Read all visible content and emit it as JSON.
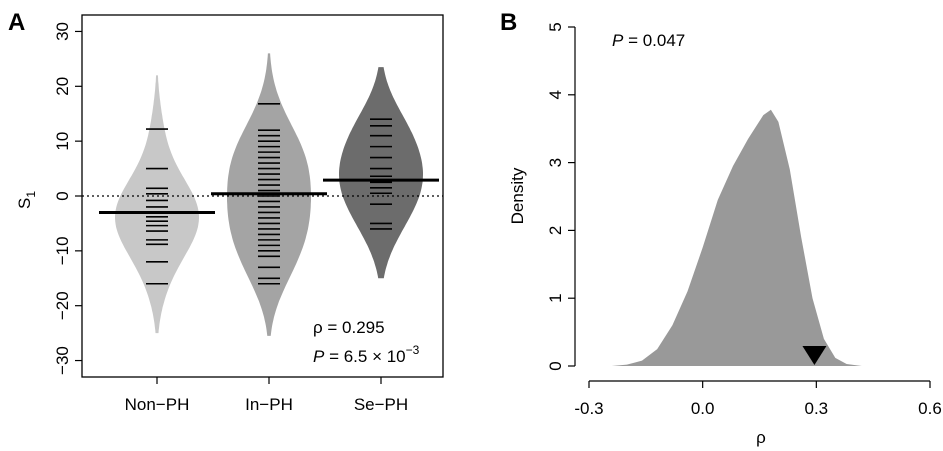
{
  "chart_data": [
    {
      "panel": "A",
      "type": "beanplot",
      "ylabel": "S",
      "ylabel_subscript": "1",
      "ylim": [
        -33,
        33
      ],
      "yticks": [
        -30,
        -20,
        -10,
        0,
        10,
        20,
        30
      ],
      "ytick_labels": [
        "−30",
        "−20",
        "−10",
        "0",
        "10",
        "20",
        "30"
      ],
      "categories": [
        "Non−PH",
        "In−PH",
        "Se−PH"
      ],
      "reference_line": 0,
      "groups": [
        {
          "name": "Non−PH",
          "color": "#c8c8c8",
          "mean": -3.0,
          "range": [
            -25,
            22
          ],
          "observations": [
            12.2,
            5,
            1.4,
            0.4,
            -0.8,
            -2,
            -3,
            -3.8,
            -4.6,
            -5.4,
            -6.4,
            -8,
            -8.8,
            -12,
            -16
          ]
        },
        {
          "name": "In−PH",
          "color": "#a4a4a4",
          "mean": 0.4,
          "range": [
            -25.5,
            26
          ],
          "observations": [
            16.8,
            12,
            11,
            10,
            9,
            8,
            7,
            6,
            5,
            4,
            3,
            2,
            1,
            0,
            -1,
            -2,
            -3,
            -4,
            -5,
            -6,
            -7,
            -8,
            -9,
            -10,
            -11,
            -13,
            -15,
            -16
          ]
        },
        {
          "name": "Se−PH",
          "color": "#6c6c6c",
          "mean": 2.9,
          "range": [
            -15,
            23.5
          ],
          "observations": [
            14,
            12.8,
            11,
            9,
            7,
            5,
            3.6,
            2.5,
            1.5,
            0.5,
            -1.5,
            -5,
            -6
          ]
        }
      ],
      "annotations": {
        "rho": "ρ = 0.295",
        "p_prefix": "P",
        "p_value": " = 6.5 × 10",
        "p_exponent": "−3"
      }
    },
    {
      "panel": "B",
      "type": "area",
      "ylabel": "Density",
      "xlabel": "ρ",
      "xlim": [
        -0.3,
        0.6
      ],
      "ylim": [
        0,
        5
      ],
      "xticks": [
        -0.3,
        0.0,
        0.3,
        0.6
      ],
      "xtick_labels": [
        "-0.3",
        "0.0",
        "0.3",
        "0.6"
      ],
      "yticks": [
        0,
        1,
        2,
        3,
        4,
        5
      ],
      "ytick_labels": [
        "0",
        "1",
        "2",
        "3",
        "4",
        "5"
      ],
      "color": "#999999",
      "x": [
        -0.24,
        -0.2,
        -0.16,
        -0.12,
        -0.08,
        -0.04,
        0.0,
        0.04,
        0.08,
        0.12,
        0.16,
        0.18,
        0.2,
        0.23,
        0.26,
        0.29,
        0.32,
        0.35,
        0.38,
        0.42
      ],
      "y": [
        0.0,
        0.02,
        0.08,
        0.25,
        0.6,
        1.1,
        1.75,
        2.45,
        2.95,
        3.35,
        3.7,
        3.78,
        3.6,
        2.9,
        1.9,
        1.0,
        0.4,
        0.12,
        0.03,
        0.0
      ],
      "observed_marker": 0.295,
      "annotations": {
        "p_prefix": "P",
        "p_value": " = 0.047"
      }
    }
  ]
}
